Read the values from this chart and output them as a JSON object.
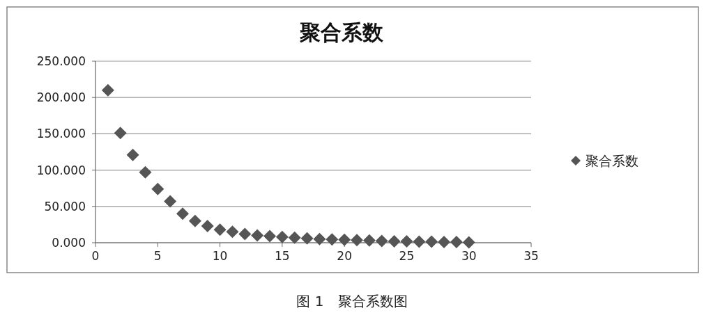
{
  "chart_data": {
    "type": "scatter",
    "title": "聚合系数",
    "marker": "diamond",
    "grid": "y",
    "legend": "right",
    "xlim": [
      0,
      35
    ],
    "xticks": [
      0,
      5,
      10,
      15,
      20,
      25,
      30,
      35
    ],
    "ylim": [
      0,
      250
    ],
    "yticks": [
      {
        "value": 0,
        "label": "0.000"
      },
      {
        "value": 50,
        "label": "50.000"
      },
      {
        "value": 100,
        "label": "100.000"
      },
      {
        "value": 150,
        "label": "150.000"
      },
      {
        "value": 200,
        "label": "200.000"
      },
      {
        "value": 250,
        "label": "250.000"
      }
    ],
    "annotations": [
      "图 1　聚合系数图"
    ],
    "series": [
      {
        "name": "聚合系数",
        "color": "#555555",
        "x": [
          1,
          2,
          3,
          4,
          5,
          6,
          7,
          8,
          9,
          10,
          11,
          12,
          13,
          14,
          15,
          16,
          17,
          18,
          19,
          20,
          21,
          22,
          23,
          24,
          25,
          26,
          27,
          28,
          29,
          30
        ],
        "values": [
          210,
          151,
          121,
          97,
          74,
          57,
          40,
          30,
          23,
          18,
          15,
          12,
          10,
          9,
          8,
          7,
          6,
          5,
          4.5,
          4,
          3.5,
          3,
          2.5,
          2,
          2,
          1.5,
          1.5,
          1,
          1,
          0.5
        ]
      }
    ]
  }
}
